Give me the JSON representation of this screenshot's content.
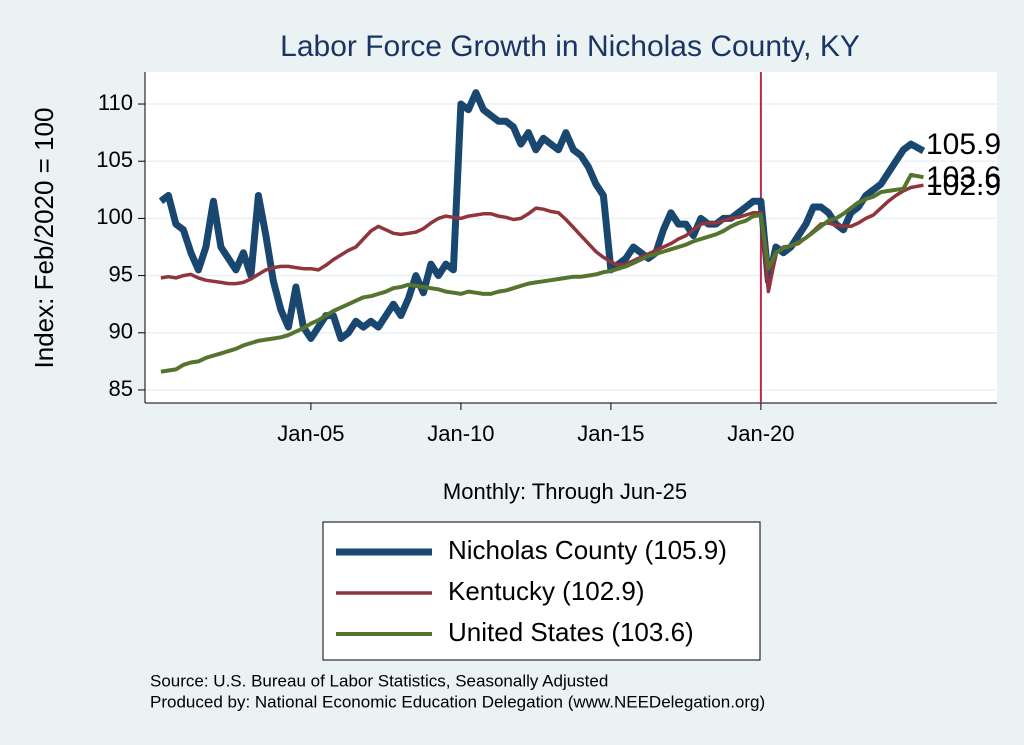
{
  "chart_data": {
    "type": "line",
    "title": "Labor Force Growth in Nicholas  County, KY",
    "x_label": "Monthly: Through Jun-25",
    "y_label": "Index: Feb/2020 = 100",
    "source": [
      "Source: U.S. Bureau of Labor Statistics, Seasonally Adjusted",
      "Produced by: National Economic Education Delegation (www.NEEDelegation.org)"
    ],
    "xlim": [
      1999.47,
      2027.87
    ],
    "ylim": [
      83.86,
      112.8
    ],
    "xticks": [
      {
        "value": 2005,
        "label": "Jan-05"
      },
      {
        "value": 2010,
        "label": "Jan-10"
      },
      {
        "value": 2015,
        "label": "Jan-15"
      },
      {
        "value": 2020,
        "label": "Jan-20"
      }
    ],
    "yticks": [
      85,
      90,
      95,
      100,
      105,
      110
    ],
    "grid": true,
    "vline": {
      "x": 2020,
      "color": "#c0284a"
    },
    "x": [
      2000,
      2000.25,
      2000.5,
      2000.75,
      2001,
      2001.25,
      2001.5,
      2001.75,
      2002,
      2002.25,
      2002.5,
      2002.75,
      2003,
      2003.25,
      2003.5,
      2003.75,
      2004,
      2004.25,
      2004.5,
      2004.75,
      2005,
      2005.25,
      2005.5,
      2005.75,
      2006,
      2006.25,
      2006.5,
      2006.75,
      2007,
      2007.25,
      2007.5,
      2007.75,
      2008,
      2008.25,
      2008.5,
      2008.75,
      2009,
      2009.25,
      2009.5,
      2009.75,
      2010,
      2010.25,
      2010.5,
      2010.75,
      2011,
      2011.25,
      2011.5,
      2011.75,
      2012,
      2012.25,
      2012.5,
      2012.75,
      2013,
      2013.25,
      2013.5,
      2013.75,
      2014,
      2014.25,
      2014.5,
      2014.75,
      2015,
      2015.25,
      2015.5,
      2015.75,
      2016,
      2016.25,
      2016.5,
      2016.75,
      2017,
      2017.25,
      2017.5,
      2017.75,
      2018,
      2018.25,
      2018.5,
      2018.75,
      2019,
      2019.25,
      2019.5,
      2019.75,
      2020,
      2020.25,
      2020.5,
      2020.75,
      2021,
      2021.25,
      2021.5,
      2021.75,
      2022,
      2022.25,
      2022.5,
      2022.75,
      2023,
      2023.25,
      2023.5,
      2023.75,
      2024,
      2024.25,
      2024.5,
      2024.75,
      2025,
      2025.42
    ],
    "series": [
      {
        "name": "Nicholas  County (105.9)",
        "color": "#1a476f",
        "width": 7,
        "end_label": "105.9",
        "values": [
          101.5,
          102,
          99.5,
          99,
          97,
          95.5,
          97.5,
          101.5,
          97.5,
          96.5,
          95.5,
          97,
          95,
          102,
          98.5,
          94.5,
          92,
          90.5,
          94,
          90.5,
          89.5,
          90.5,
          91.5,
          91.5,
          89.5,
          90,
          91,
          90.5,
          91,
          90.5,
          91.5,
          92.5,
          91.5,
          93,
          95,
          93.5,
          96,
          95,
          96,
          95.5,
          110,
          109.5,
          111,
          109.5,
          109,
          108.5,
          108.5,
          108,
          106.5,
          107.5,
          106,
          107,
          106.5,
          106,
          107.5,
          106,
          105.5,
          104.5,
          103,
          102,
          95.5,
          96,
          96.5,
          97.5,
          97,
          96.5,
          97,
          99,
          100.5,
          99.5,
          99.5,
          98.5,
          100,
          99.5,
          99.5,
          100,
          100,
          100.5,
          101,
          101.5,
          101.5,
          94.5,
          97.5,
          97,
          97.5,
          98.5,
          99.5,
          101,
          101,
          100.5,
          99.5,
          99,
          100.5,
          101,
          102,
          102.5,
          103,
          104,
          105,
          106,
          106.5,
          105.9
        ]
      },
      {
        "name": "Kentucky (102.9)",
        "color": "#90353b",
        "width": 3.5,
        "end_label": "102.9",
        "values": [
          94.8,
          94.9,
          94.8,
          95.0,
          95.1,
          94.8,
          94.6,
          94.5,
          94.4,
          94.3,
          94.3,
          94.4,
          94.7,
          95.1,
          95.5,
          95.7,
          95.8,
          95.8,
          95.7,
          95.6,
          95.6,
          95.5,
          95.9,
          96.4,
          96.8,
          97.2,
          97.5,
          98.2,
          98.9,
          99.3,
          99.0,
          98.7,
          98.6,
          98.7,
          98.8,
          99.1,
          99.6,
          100.0,
          100.2,
          100.1,
          100.0,
          100.2,
          100.3,
          100.4,
          100.4,
          100.2,
          100.1,
          99.9,
          100.0,
          100.4,
          100.9,
          100.8,
          100.6,
          100.5,
          99.9,
          99.2,
          98.5,
          97.8,
          97.1,
          96.6,
          96.2,
          95.9,
          96.0,
          96.3,
          96.6,
          96.9,
          97.2,
          97.5,
          97.8,
          98.2,
          98.5,
          99.0,
          99.5,
          99.6,
          99.6,
          99.8,
          100.0,
          100.1,
          100.3,
          100.5,
          100.5,
          93.6,
          97.0,
          97.5,
          97.6,
          97.8,
          98.3,
          98.9,
          99.5,
          99.6,
          99.4,
          99.3,
          99.3,
          99.6,
          100.0,
          100.3,
          100.9,
          101.5,
          102.0,
          102.4,
          102.7,
          102.9
        ]
      },
      {
        "name": "United States (103.6)",
        "color": "#55752f",
        "width": 4,
        "end_label": "103.6",
        "values": [
          86.6,
          86.7,
          86.8,
          87.2,
          87.4,
          87.5,
          87.8,
          88.0,
          88.2,
          88.4,
          88.6,
          88.9,
          89.1,
          89.3,
          89.4,
          89.5,
          89.6,
          89.8,
          90.1,
          90.4,
          90.8,
          91.1,
          91.5,
          91.9,
          92.2,
          92.5,
          92.8,
          93.1,
          93.2,
          93.4,
          93.6,
          93.9,
          94.0,
          94.2,
          94.1,
          94.0,
          93.9,
          93.8,
          93.6,
          93.5,
          93.4,
          93.6,
          93.5,
          93.4,
          93.4,
          93.6,
          93.7,
          93.9,
          94.1,
          94.3,
          94.4,
          94.5,
          94.6,
          94.7,
          94.8,
          94.9,
          94.9,
          95.0,
          95.1,
          95.3,
          95.4,
          95.6,
          95.8,
          96.1,
          96.4,
          96.7,
          96.9,
          97.1,
          97.3,
          97.5,
          97.7,
          98.0,
          98.2,
          98.4,
          98.6,
          98.9,
          99.3,
          99.6,
          99.8,
          100.2,
          100.3,
          95.6,
          97.0,
          97.4,
          97.6,
          97.9,
          98.3,
          98.8,
          99.3,
          99.8,
          100.0,
          100.4,
          100.9,
          101.4,
          101.7,
          101.9,
          102.3,
          102.4,
          102.5,
          102.6,
          103.8,
          103.6
        ]
      }
    ]
  }
}
